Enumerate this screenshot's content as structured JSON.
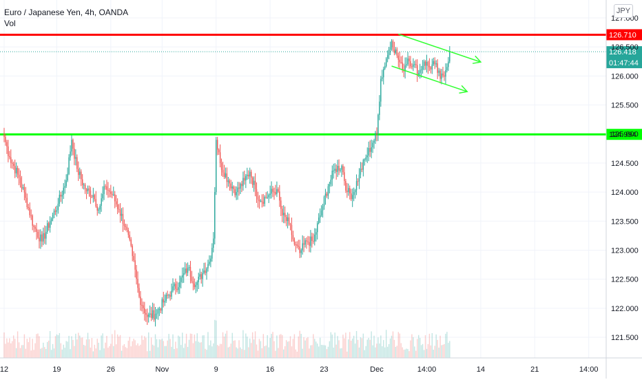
{
  "header": {
    "title": "Euro / Japanese Yen, 4h, OANDA",
    "volume_label": "Vol",
    "currency_button": "JPY"
  },
  "chart_data": {
    "type": "candlestick",
    "symbol": "Euro / Japanese Yen",
    "interval": "4h",
    "exchange": "OANDA",
    "currency": "JPY",
    "price_axis": {
      "min": 121.2,
      "max": 127.3,
      "ticks": [
        "127.000",
        "126.500",
        "126.000",
        "125.500",
        "125.000",
        "124.500",
        "124.000",
        "123.500",
        "123.000",
        "122.500",
        "122.000",
        "121.500"
      ],
      "tick_values": [
        127.0,
        126.5,
        126.0,
        125.5,
        125.0,
        124.5,
        124.0,
        123.5,
        123.0,
        122.5,
        122.0,
        121.5
      ]
    },
    "time_axis": {
      "labels": [
        "12",
        "19",
        "26",
        "Nov",
        "9",
        "16",
        "23",
        "Dec",
        "14:00",
        "14",
        "21",
        "14:00"
      ],
      "label_bar": [
        0,
        39,
        79,
        117,
        157,
        197,
        237,
        276,
        313,
        353,
        393,
        433
      ]
    },
    "horizontal_lines": [
      {
        "price": 126.71,
        "label": "126.710",
        "color": "#ff0000"
      },
      {
        "price": 124.994,
        "label": "124.994",
        "color": "#00ff00"
      }
    ],
    "last_price": {
      "value": 126.418,
      "label": "126.418",
      "countdown": "01:47:44",
      "color": "#26a69a"
    },
    "trendlines": [
      {
        "color": "#33ff33",
        "points": [
          [
            292,
            126.72
          ],
          [
            353,
            126.24
          ]
        ],
        "arrow": true
      },
      {
        "color": "#33ff33",
        "points": [
          [
            287,
            126.17
          ],
          [
            343,
            125.73
          ]
        ],
        "arrow": true
      }
    ],
    "up_color": "#26a69a",
    "down_color": "#ef5350",
    "anchors": [
      [
        0,
        124.95
      ],
      [
        4,
        124.6
      ],
      [
        10,
        124.3
      ],
      [
        16,
        123.9
      ],
      [
        22,
        123.4
      ],
      [
        28,
        123.15
      ],
      [
        34,
        123.5
      ],
      [
        40,
        123.8
      ],
      [
        46,
        124.2
      ],
      [
        50,
        124.9
      ],
      [
        54,
        124.4
      ],
      [
        60,
        124.05
      ],
      [
        66,
        123.95
      ],
      [
        70,
        123.7
      ],
      [
        75,
        124.1
      ],
      [
        80,
        123.95
      ],
      [
        85,
        123.7
      ],
      [
        90,
        123.4
      ],
      [
        95,
        122.9
      ],
      [
        100,
        122.2
      ],
      [
        106,
        121.85
      ],
      [
        112,
        121.9
      ],
      [
        118,
        122.1
      ],
      [
        124,
        122.3
      ],
      [
        130,
        122.45
      ],
      [
        136,
        122.7
      ],
      [
        142,
        122.4
      ],
      [
        148,
        122.65
      ],
      [
        152,
        122.8
      ],
      [
        155,
        123.2
      ],
      [
        157,
        124.9
      ],
      [
        160,
        124.5
      ],
      [
        166,
        124.2
      ],
      [
        172,
        124.0
      ],
      [
        178,
        124.2
      ],
      [
        182,
        124.35
      ],
      [
        186,
        124.05
      ],
      [
        190,
        123.85
      ],
      [
        196,
        123.95
      ],
      [
        202,
        124.05
      ],
      [
        206,
        123.6
      ],
      [
        211,
        123.45
      ],
      [
        215,
        123.1
      ],
      [
        219,
        122.95
      ],
      [
        224,
        123.15
      ],
      [
        229,
        123.15
      ],
      [
        234,
        123.6
      ],
      [
        240,
        124.1
      ],
      [
        245,
        124.4
      ],
      [
        250,
        124.45
      ],
      [
        254,
        124.0
      ],
      [
        258,
        123.95
      ],
      [
        263,
        124.3
      ],
      [
        268,
        124.6
      ],
      [
        273,
        124.85
      ],
      [
        276,
        125.0
      ],
      [
        279,
        125.95
      ],
      [
        283,
        126.3
      ],
      [
        287,
        126.6
      ],
      [
        291,
        126.35
      ],
      [
        295,
        126.1
      ],
      [
        299,
        126.3
      ],
      [
        303,
        126.2
      ],
      [
        307,
        126.05
      ],
      [
        311,
        126.25
      ],
      [
        315,
        126.15
      ],
      [
        319,
        126.2
      ],
      [
        323,
        125.95
      ],
      [
        327,
        126.1
      ],
      [
        330,
        126.42
      ]
    ],
    "volume": {
      "max_height_ratio": 0.18
    }
  }
}
